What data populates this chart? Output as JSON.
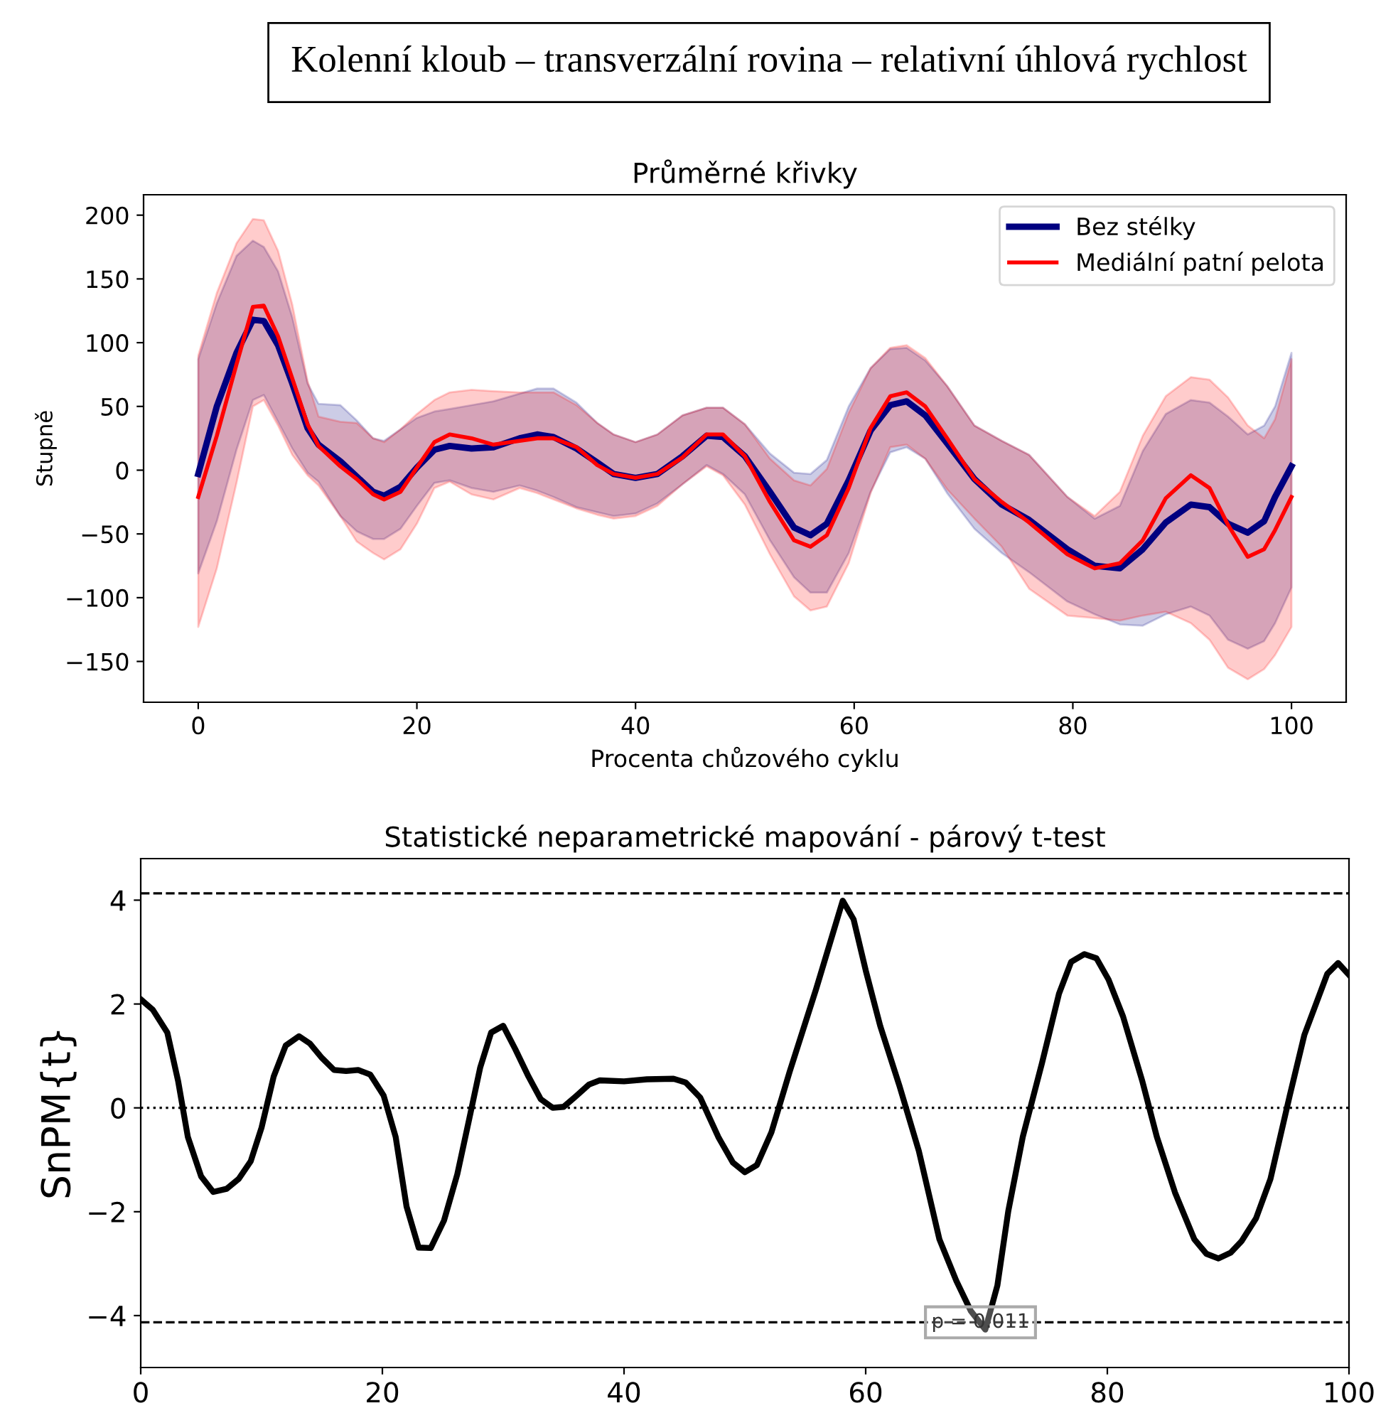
{
  "chart_data": [
    {
      "type": "line",
      "title": "Průměrné křivky",
      "xlabel": "Procenta chůzového cyklu",
      "ylabel": "Stupně",
      "annotations": [
        "Kolenní kloub – transverzální rovina – relativní úhlová rychlost"
      ],
      "x": [
        0,
        1.7,
        3.5,
        5,
        6,
        7.3,
        8.6,
        10,
        11,
        13,
        14.5,
        16,
        17,
        18.5,
        20,
        21.6,
        23,
        25,
        27,
        29.4,
        31,
        32.5,
        34.6,
        36.5,
        38,
        40,
        42,
        44.3,
        46.5,
        48,
        50,
        52.3,
        54.5,
        56,
        57.5,
        59.5,
        61.5,
        63.3,
        64.8,
        66.5,
        68.5,
        71,
        73.5,
        76,
        79.5,
        82,
        84.3,
        86.4,
        88.5,
        90.8,
        92.5,
        94.2,
        96,
        97.5,
        98.5,
        100
      ],
      "series": [
        {
          "name": "Bez stélky",
          "color": "#000080",
          "values": [
            -3,
            50,
            92,
            118,
            117,
            98,
            68,
            33,
            20,
            7,
            -5,
            -17,
            -20,
            -13,
            2,
            16,
            19,
            17,
            18,
            25,
            28,
            26,
            17,
            6,
            -3,
            -6,
            -3,
            11,
            27,
            26,
            11,
            -17,
            -45,
            -51,
            -42,
            -8,
            31,
            51,
            54,
            43,
            21,
            -7,
            -27,
            -39,
            -62,
            -75,
            -77,
            -62,
            -41,
            -27,
            -29,
            -42,
            -49,
            -40,
            -21,
            3
          ],
          "upper": [
            87,
            131,
            168,
            180,
            175,
            156,
            120,
            68,
            52,
            51,
            39,
            25,
            23,
            32,
            41,
            46,
            48,
            51,
            54,
            60,
            64,
            64,
            53,
            37,
            28,
            22,
            28,
            43,
            49,
            49,
            36,
            13,
            -2,
            -3,
            8,
            50,
            80,
            95,
            96,
            86,
            66,
            35,
            23,
            12,
            -21,
            -38,
            -28,
            15,
            44,
            55,
            53,
            42,
            28,
            35,
            50,
            92
          ],
          "lower": [
            -81,
            -40,
            16,
            55,
            59,
            38,
            17,
            -2,
            -9,
            -36,
            -48,
            -54,
            -54,
            -46,
            -28,
            -10,
            -8,
            -14,
            -17,
            -12,
            -16,
            -21,
            -29,
            -33,
            -36,
            -34,
            -26,
            -11,
            4,
            -3,
            -19,
            -55,
            -84,
            -96,
            -96,
            -65,
            -17,
            14,
            18,
            9,
            -18,
            -46,
            -65,
            -80,
            -103,
            -113,
            -121,
            -122,
            -113,
            -107,
            -114,
            -133,
            -140,
            -134,
            -120,
            -92
          ]
        },
        {
          "name": "Mediální patní pelota",
          "color": "#ff0000",
          "values": [
            -21,
            27,
            83,
            128,
            129,
            105,
            72,
            36,
            19,
            3,
            -7,
            -19,
            -23,
            -17,
            2,
            22,
            28,
            25,
            20,
            23,
            25,
            25,
            18,
            4,
            -3,
            -6,
            -3,
            10,
            28,
            28,
            11,
            -25,
            -55,
            -60,
            -51,
            -14,
            33,
            58,
            61,
            50,
            25,
            -7,
            -25,
            -41,
            -66,
            -77,
            -73,
            -55,
            -22,
            -4,
            -14,
            -43,
            -68,
            -62,
            -47,
            -21
          ],
          "upper": [
            90,
            139,
            178,
            197,
            196,
            172,
            130,
            70,
            42,
            38,
            37,
            25,
            22,
            32,
            44,
            55,
            61,
            63,
            62,
            61,
            61,
            61,
            51,
            37,
            28,
            22,
            28,
            43,
            49,
            49,
            36,
            9,
            -8,
            -12,
            1,
            45,
            80,
            96,
            98,
            88,
            66,
            35,
            23,
            12,
            -21,
            -36,
            -17,
            27,
            58,
            73,
            71,
            57,
            35,
            25,
            40,
            87
          ],
          "lower": [
            -123,
            -77,
            -10,
            50,
            55,
            35,
            12,
            -4,
            -12,
            -36,
            -56,
            -65,
            -70,
            -62,
            -42,
            -14,
            -9,
            -19,
            -23,
            -14,
            -18,
            -23,
            -30,
            -35,
            -38,
            -36,
            -28,
            -11,
            3,
            -4,
            -27,
            -66,
            -99,
            -110,
            -107,
            -73,
            -18,
            18,
            20,
            9,
            -15,
            -38,
            -60,
            -93,
            -114,
            -116,
            -118,
            -114,
            -111,
            -120,
            -133,
            -155,
            -164,
            -156,
            -145,
            -123
          ]
        }
      ],
      "xlim": [
        -5,
        105
      ],
      "xticks": [
        0,
        20,
        40,
        60,
        80,
        100
      ],
      "ylim": [
        -182,
        216
      ],
      "yticks": [
        {
          "value": -150,
          "label": "−150"
        },
        {
          "value": -100,
          "label": "−100"
        },
        {
          "value": -50,
          "label": "−50"
        },
        0,
        50,
        100,
        150,
        200
      ],
      "legend": "top right",
      "grid": false
    },
    {
      "type": "line",
      "title": "Statistické neparametrické mapování - párový t-test",
      "ylabel": "SnPM{t}",
      "annotations": [
        {
          "text": "p = 0.011",
          "x": 69.5,
          "y": -4.13
        }
      ],
      "x": [
        0,
        1,
        2.2,
        3.1,
        3.9,
        5,
        6,
        7.1,
        8.1,
        9.1,
        10,
        11,
        12,
        13.1,
        14,
        15,
        16,
        17,
        18,
        19,
        20.1,
        21.1,
        22,
        23,
        24,
        25.1,
        26.2,
        27.2,
        28.1,
        29,
        30,
        31,
        32.1,
        33.1,
        34.1,
        35,
        36,
        37.1,
        38,
        40,
        41.9,
        44.1,
        45.1,
        46.3,
        47.8,
        49,
        50,
        51,
        52.2,
        53.7,
        55.9,
        58.1,
        59,
        60,
        61.2,
        62.8,
        64.4,
        66.1,
        67.5,
        68.7,
        69.9,
        70.9,
        71.8,
        73,
        74.6,
        76,
        77,
        78.1,
        79.1,
        80.1,
        81.3,
        82.9,
        84.1,
        85.6,
        87.2,
        88.2,
        89.2,
        90.2,
        91.1,
        92.3,
        93.5,
        95.1,
        96.3,
        98.2,
        99.1,
        100
      ],
      "series": [
        {
          "color": "#000000",
          "values": [
            2.09,
            1.89,
            1.45,
            0.51,
            -0.56,
            -1.32,
            -1.62,
            -1.56,
            -1.37,
            -1.03,
            -0.38,
            0.6,
            1.2,
            1.38,
            1.24,
            0.96,
            0.73,
            0.71,
            0.73,
            0.64,
            0.24,
            -0.56,
            -1.9,
            -2.69,
            -2.7,
            -2.17,
            -1.28,
            -0.2,
            0.78,
            1.45,
            1.58,
            1.13,
            0.6,
            0.17,
            0,
            0.02,
            0.22,
            0.45,
            0.53,
            0.51,
            0.55,
            0.56,
            0.49,
            0.2,
            -0.56,
            -1.05,
            -1.24,
            -1.1,
            -0.47,
            0.69,
            2.29,
            3.99,
            3.63,
            2.65,
            1.58,
            0.42,
            -0.83,
            -2.53,
            -3.33,
            -3.91,
            -4.27,
            -3.42,
            -1.99,
            -0.56,
            0.87,
            2.2,
            2.81,
            2.96,
            2.88,
            2.47,
            1.76,
            0.51,
            -0.56,
            -1.63,
            -2.53,
            -2.81,
            -2.9,
            -2.79,
            -2.57,
            -2.13,
            -1.37,
            0.24,
            1.4,
            2.58,
            2.79,
            2.56
          ]
        }
      ],
      "ref_lines": [
        {
          "axis": "y",
          "value": 4.13,
          "line_style": "dashed",
          "color": "#000000"
        },
        {
          "axis": "y",
          "value": -4.13,
          "line_style": "dashed",
          "color": "#000000"
        },
        {
          "axis": "y",
          "value": 0,
          "line_style": "dotted",
          "color": "#000000"
        }
      ],
      "xlim": [
        0,
        100
      ],
      "xticks": [
        0,
        20,
        40,
        60,
        80,
        100
      ],
      "ylim": [
        -5,
        4.8
      ],
      "yticks": [
        {
          "value": -4,
          "label": "−4"
        },
        {
          "value": -2,
          "label": "−2"
        },
        0,
        2,
        4
      ],
      "legend": false,
      "grid": false
    }
  ]
}
